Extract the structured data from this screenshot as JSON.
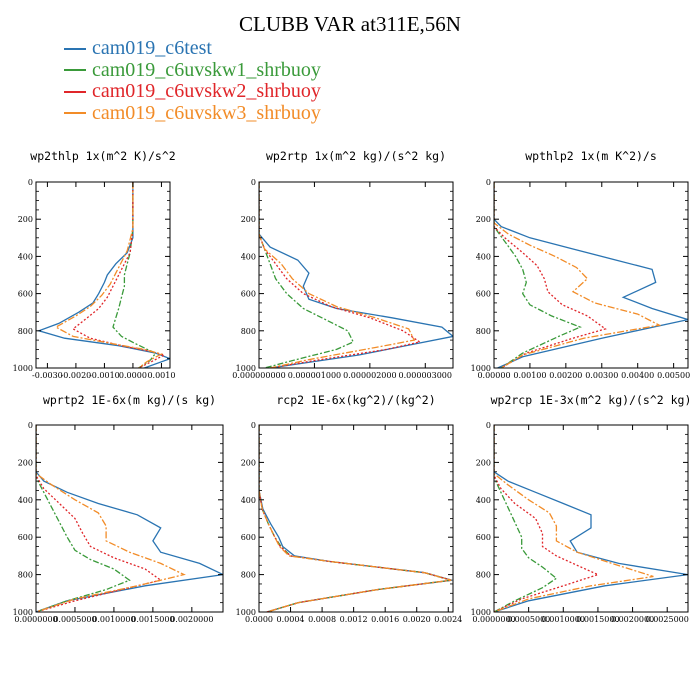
{
  "page": {
    "title": "CLUBB VAR at311E,56N"
  },
  "legend": {
    "items": [
      {
        "label": "cam019_c6test",
        "color": "#2a74b2"
      },
      {
        "label": "cam019_c6uvskw1_shrbuoy",
        "color": "#3a9a3a"
      },
      {
        "label": "cam019_c6uvskw2_shrbuoy",
        "color": "#e0262a"
      },
      {
        "label": "cam019_c6uvskw3_shrbuoy",
        "color": "#f28c28"
      }
    ]
  },
  "chart_data": [
    {
      "type": "line",
      "title": "wp2thlp  1x(m^2 K)/s^2",
      "xlim": [
        -0.0034,
        0.0013
      ],
      "ylim": [
        1000,
        0
      ],
      "yticks": [
        "0",
        "200",
        "400",
        "600",
        "800",
        "1000"
      ],
      "xticks": [
        {
          "value": -0.003,
          "label": "-0.0030"
        },
        {
          "value": -0.002,
          "label": "-0.0020"
        },
        {
          "value": -0.001,
          "label": "-0.0010"
        },
        {
          "value": 0,
          "label": "0.0000"
        },
        {
          "value": 0.001,
          "label": "0.0010"
        }
      ],
      "series": [
        {
          "name": "cam019_c6test",
          "x": [
            0,
            0,
            0,
            -0.0002,
            -0.0006,
            -0.0009,
            -0.001,
            -0.0012,
            -0.0014,
            -0.0019,
            -0.0026,
            -0.0033,
            -0.0024,
            -0.0005,
            0.0008,
            0.0013,
            0.0004
          ],
          "y": [
            0,
            200,
            300,
            380,
            440,
            500,
            540,
            600,
            650,
            700,
            760,
            800,
            840,
            880,
            920,
            950,
            1000
          ]
        },
        {
          "name": "cam019_c6uvskw1_shrbuoy",
          "x": [
            0,
            0,
            -0.0001,
            -0.0002,
            -0.0003,
            -0.0003,
            -0.0004,
            -0.0005,
            -0.0006,
            -0.0007,
            -0.0004,
            0.0001,
            0.0005,
            0.0008,
            0.0006,
            0.0002
          ],
          "y": [
            0,
            250,
            380,
            440,
            500,
            560,
            620,
            680,
            730,
            780,
            830,
            870,
            900,
            920,
            960,
            1000
          ]
        },
        {
          "name": "cam019_c6uvskw2_shrbuoy",
          "x": [
            0,
            0,
            -0.0001,
            -0.0003,
            -0.0005,
            -0.0007,
            -0.0009,
            -0.0012,
            -0.0016,
            -0.0021,
            -0.0015,
            -0.0004,
            0.0006,
            0.0011,
            0.0006,
            0.0002
          ],
          "y": [
            0,
            250,
            380,
            440,
            500,
            560,
            620,
            680,
            730,
            790,
            840,
            880,
            910,
            930,
            970,
            1000
          ]
        },
        {
          "name": "cam019_c6uvskw3_shrbuoy",
          "x": [
            0,
            0,
            -0.0002,
            -0.0004,
            -0.0006,
            -0.0008,
            -0.0011,
            -0.0015,
            -0.002,
            -0.0027,
            -0.0021,
            -0.0007,
            0.0004,
            0.001,
            0.0005,
            0.0002
          ],
          "y": [
            0,
            250,
            370,
            430,
            490,
            550,
            610,
            670,
            720,
            780,
            830,
            870,
            900,
            925,
            965,
            1000
          ]
        }
      ]
    },
    {
      "type": "line",
      "title": "wp2rtp  1x(m^2 kg)/(s^2 kg)",
      "xlim": [
        0,
        3.5e-06
      ],
      "ylim": [
        1000,
        0
      ],
      "yticks": [
        "0",
        "200",
        "400",
        "600",
        "800",
        "1000"
      ],
      "xticks": [
        {
          "value": 0,
          "label": "0.000000000"
        },
        {
          "value": 1e-06,
          "label": "0.000001000"
        },
        {
          "value": 2e-06,
          "label": "0.000002000"
        },
        {
          "value": 3e-06,
          "label": "0.000003000"
        }
      ],
      "series": [
        {
          "name": "cam019_c6test",
          "x": [
            0,
            0,
            2e-07,
            7e-07,
            9e-07,
            8e-07,
            9e-07,
            1.4e-06,
            2.4e-06,
            3.3e-06,
            3.5e-06,
            1.8e-06,
            2e-07
          ],
          "y": [
            0,
            280,
            350,
            420,
            490,
            560,
            630,
            680,
            730,
            780,
            830,
            930,
            1000
          ]
        },
        {
          "name": "cam019_c6uvskw1_shrbuoy",
          "x": [
            0,
            0,
            1e-07,
            2e-07,
            3e-07,
            5e-07,
            8e-07,
            1.2e-06,
            1.6e-06,
            1.7e-06,
            1.4e-06,
            6e-07,
            1e-07
          ],
          "y": [
            0,
            280,
            360,
            440,
            520,
            600,
            680,
            740,
            800,
            860,
            900,
            960,
            1000
          ]
        },
        {
          "name": "cam019_c6uvskw2_shrbuoy",
          "x": [
            0,
            0,
            1e-07,
            3e-07,
            5e-07,
            8e-07,
            1.3e-06,
            2e-06,
            2.6e-06,
            2.9e-06,
            2.3e-06,
            1e-06,
            2e-07
          ],
          "y": [
            0,
            280,
            360,
            440,
            520,
            600,
            670,
            730,
            800,
            860,
            900,
            960,
            1000
          ]
        },
        {
          "name": "cam019_c6uvskw3_shrbuoy",
          "x": [
            0,
            0,
            1e-07,
            4e-07,
            6e-07,
            9e-07,
            1.4e-06,
            2.1e-06,
            2.7e-06,
            2.8e-06,
            2.1e-06,
            9e-07,
            2e-07
          ],
          "y": [
            0,
            280,
            360,
            440,
            520,
            600,
            670,
            730,
            790,
            850,
            890,
            955,
            1000
          ]
        }
      ]
    },
    {
      "type": "line",
      "title": "wpthlp2  1x(m K^2)/s",
      "xlim": [
        0,
        0.0054
      ],
      "ylim": [
        1000,
        0
      ],
      "yticks": [
        "0",
        "200",
        "400",
        "600",
        "800",
        "1000"
      ],
      "xticks": [
        {
          "value": 0,
          "label": "0.00000"
        },
        {
          "value": 0.001,
          "label": "0.00100"
        },
        {
          "value": 0.002,
          "label": "0.00200"
        },
        {
          "value": 0.003,
          "label": "0.00300"
        },
        {
          "value": 0.004,
          "label": "0.00400"
        },
        {
          "value": 0.005,
          "label": "0.00500"
        }
      ],
      "series": [
        {
          "name": "cam019_c6test",
          "x": [
            0,
            0,
            0.0002,
            0.001,
            0.0022,
            0.0034,
            0.0044,
            0.0045,
            0.0036,
            0.0044,
            0.0054,
            0.003,
            0.0008,
            0.0001
          ],
          "y": [
            0,
            200,
            240,
            300,
            360,
            420,
            470,
            540,
            620,
            680,
            740,
            840,
            940,
            1000
          ]
        },
        {
          "name": "cam019_c6uvskw1_shrbuoy",
          "x": [
            0,
            0,
            0.0003,
            0.0006,
            0.0008,
            0.0009,
            0.0008,
            0.001,
            0.0016,
            0.0024,
            0.0018,
            0.0008,
            0.0002
          ],
          "y": [
            0,
            240,
            320,
            400,
            470,
            540,
            600,
            660,
            720,
            780,
            830,
            920,
            1000
          ]
        },
        {
          "name": "cam019_c6uvskw2_shrbuoy",
          "x": [
            0,
            0,
            0.0003,
            0.0008,
            0.0012,
            0.0014,
            0.0015,
            0.0019,
            0.0026,
            0.0031,
            0.0022,
            0.0009,
            0.0002
          ],
          "y": [
            0,
            240,
            300,
            380,
            450,
            520,
            590,
            660,
            720,
            790,
            840,
            920,
            1000
          ]
        },
        {
          "name": "cam019_c6uvskw3_shrbuoy",
          "x": [
            0,
            0,
            0.0004,
            0.001,
            0.0017,
            0.0023,
            0.0026,
            0.0022,
            0.0028,
            0.004,
            0.0046,
            0.0025,
            0.0008,
            0.0002
          ],
          "y": [
            0,
            220,
            280,
            340,
            400,
            460,
            520,
            590,
            650,
            710,
            770,
            840,
            930,
            1000
          ]
        }
      ]
    },
    {
      "type": "line",
      "title": "wprtp2  1E-6x(m kg)/(s kg)",
      "xlim": [
        0,
        0.0024
      ],
      "ylim": [
        1000,
        0
      ],
      "yticks": [
        "0",
        "200",
        "400",
        "600",
        "800",
        "1000"
      ],
      "xticks": [
        {
          "value": 0,
          "label": "0.0000000"
        },
        {
          "value": 0.0005,
          "label": "0.0005000"
        },
        {
          "value": 0.001,
          "label": "0.0010000"
        },
        {
          "value": 0.0015,
          "label": "0.0015000"
        },
        {
          "value": 0.002,
          "label": "0.0020000"
        }
      ],
      "series": [
        {
          "name": "cam019_c6test",
          "x": [
            0,
            0,
            0.0001,
            0.0004,
            0.0008,
            0.0013,
            0.0016,
            0.0015,
            0.0016,
            0.0021,
            0.0024,
            0.0014,
            0.0004,
            0
          ],
          "y": [
            0,
            250,
            300,
            360,
            420,
            480,
            550,
            620,
            680,
            740,
            800,
            860,
            940,
            1000
          ]
        },
        {
          "name": "cam019_c6uvskw1_shrbuoy",
          "x": [
            0,
            0,
            0.0001,
            0.0002,
            0.0003,
            0.0004,
            0.0005,
            0.0007,
            0.001,
            0.0012,
            0.0009,
            0.0004,
            0
          ],
          "y": [
            0,
            280,
            360,
            440,
            520,
            600,
            670,
            720,
            770,
            830,
            880,
            940,
            1000
          ]
        },
        {
          "name": "cam019_c6uvskw2_shrbuoy",
          "x": [
            0,
            0,
            0.0001,
            0.0003,
            0.0005,
            0.0006,
            0.0007,
            0.001,
            0.0014,
            0.0016,
            0.0011,
            0.0005,
            0
          ],
          "y": [
            0,
            270,
            340,
            420,
            500,
            580,
            650,
            710,
            770,
            830,
            880,
            940,
            1000
          ]
        },
        {
          "name": "cam019_c6uvskw3_shrbuoy",
          "x": [
            0,
            0,
            0.0002,
            0.0005,
            0.0008,
            0.0009,
            0.0009,
            0.0012,
            0.0016,
            0.0019,
            0.0013,
            0.0005,
            0
          ],
          "y": [
            0,
            260,
            320,
            400,
            470,
            540,
            620,
            680,
            740,
            800,
            860,
            930,
            1000
          ]
        }
      ]
    },
    {
      "type": "line",
      "title": "rcp2  1E-6x(kg^2)/(kg^2)",
      "xlim": [
        0,
        0.00246
      ],
      "ylim": [
        1000,
        0
      ],
      "yticks": [
        "0",
        "200",
        "400",
        "600",
        "800",
        "1000"
      ],
      "xticks": [
        {
          "value": 0,
          "label": "0.0000"
        },
        {
          "value": 0.0004,
          "label": "0.0004"
        },
        {
          "value": 0.0008,
          "label": "0.0008"
        },
        {
          "value": 0.0012,
          "label": "0.0012"
        },
        {
          "value": 0.0016,
          "label": "0.0016"
        },
        {
          "value": 0.002,
          "label": "0.0020"
        },
        {
          "value": 0.0024,
          "label": "0.0024"
        }
      ],
      "series": [
        {
          "name": "cam019_c6test",
          "x": [
            0,
            0,
            5e-05,
            0.00015,
            0.00025,
            0.0003,
            0.00045,
            0.0009,
            0.0015,
            0.0021,
            0.00245,
            0.0015,
            0.0005,
            0.0001
          ],
          "y": [
            0,
            350,
            450,
            530,
            600,
            650,
            700,
            730,
            760,
            790,
            830,
            880,
            950,
            1000
          ]
        },
        {
          "name": "cam019_c6uvskw1_shrbuoy",
          "x": [
            0,
            0,
            4e-05,
            0.00012,
            0.0002,
            0.00028,
            0.0004,
            0.0009,
            0.0015,
            0.0021,
            0.00243,
            0.0015,
            0.0005,
            0.0001
          ],
          "y": [
            0,
            350,
            450,
            530,
            600,
            650,
            700,
            730,
            760,
            790,
            830,
            880,
            950,
            1000
          ]
        },
        {
          "name": "cam019_c6uvskw2_shrbuoy",
          "x": [
            0,
            0,
            4e-05,
            0.00012,
            0.0002,
            0.00027,
            0.0004,
            0.0009,
            0.0015,
            0.0021,
            0.00244,
            0.0015,
            0.0005,
            0.0001
          ],
          "y": [
            0,
            350,
            450,
            530,
            600,
            650,
            700,
            730,
            760,
            790,
            830,
            880,
            950,
            1000
          ]
        },
        {
          "name": "cam019_c6uvskw3_shrbuoy",
          "x": [
            0,
            0,
            4e-05,
            0.00012,
            0.0002,
            0.00026,
            0.00038,
            0.0009,
            0.0015,
            0.0021,
            0.00244,
            0.0015,
            0.0005,
            0.0001
          ],
          "y": [
            0,
            350,
            450,
            530,
            600,
            650,
            700,
            730,
            760,
            790,
            830,
            880,
            950,
            1000
          ]
        }
      ]
    },
    {
      "type": "line",
      "title": "wp2rcp  1E-3x(m^2 kg)/(s^2 kg)",
      "xlim": [
        0,
        0.0028
      ],
      "ylim": [
        1000,
        0
      ],
      "yticks": [
        "0",
        "200",
        "400",
        "600",
        "800",
        "1000"
      ],
      "xticks": [
        {
          "value": 0,
          "label": "0.0000000"
        },
        {
          "value": 0.0005,
          "label": "0.0005000"
        },
        {
          "value": 0.001,
          "label": "0.0010000"
        },
        {
          "value": 0.0015,
          "label": "0.0015000"
        },
        {
          "value": 0.002,
          "label": "0.0020000"
        },
        {
          "value": 0.0025,
          "label": "0.0025000"
        }
      ],
      "series": [
        {
          "name": "cam019_c6test",
          "x": [
            0,
            0,
            0.0002,
            0.0006,
            0.001,
            0.0014,
            0.0014,
            0.0011,
            0.0012,
            0.0018,
            0.0028,
            0.0016,
            0.0005,
            0
          ],
          "y": [
            0,
            250,
            300,
            360,
            420,
            480,
            550,
            620,
            680,
            740,
            800,
            860,
            940,
            1000
          ]
        },
        {
          "name": "cam019_c6uvskw1_shrbuoy",
          "x": [
            0,
            0,
            0.0001,
            0.0002,
            0.0003,
            0.0004,
            0.0004,
            0.0005,
            0.0007,
            0.0009,
            0.0007,
            0.0003,
            0
          ],
          "y": [
            0,
            280,
            360,
            440,
            520,
            600,
            660,
            710,
            760,
            820,
            870,
            940,
            1000
          ]
        },
        {
          "name": "cam019_c6uvskw2_shrbuoy",
          "x": [
            0,
            0,
            0.0001,
            0.0003,
            0.0006,
            0.0007,
            0.0007,
            0.0009,
            0.0012,
            0.0015,
            0.001,
            0.0004,
            0
          ],
          "y": [
            0,
            270,
            340,
            420,
            500,
            580,
            650,
            700,
            750,
            800,
            860,
            930,
            1000
          ]
        },
        {
          "name": "cam019_c6uvskw3_shrbuoy",
          "x": [
            0,
            0,
            0.0002,
            0.0005,
            0.0008,
            0.0009,
            0.0009,
            0.0012,
            0.0017,
            0.0023,
            0.0014,
            0.0005,
            0
          ],
          "y": [
            0,
            260,
            320,
            400,
            470,
            540,
            620,
            680,
            740,
            810,
            860,
            930,
            1000
          ]
        }
      ]
    }
  ]
}
